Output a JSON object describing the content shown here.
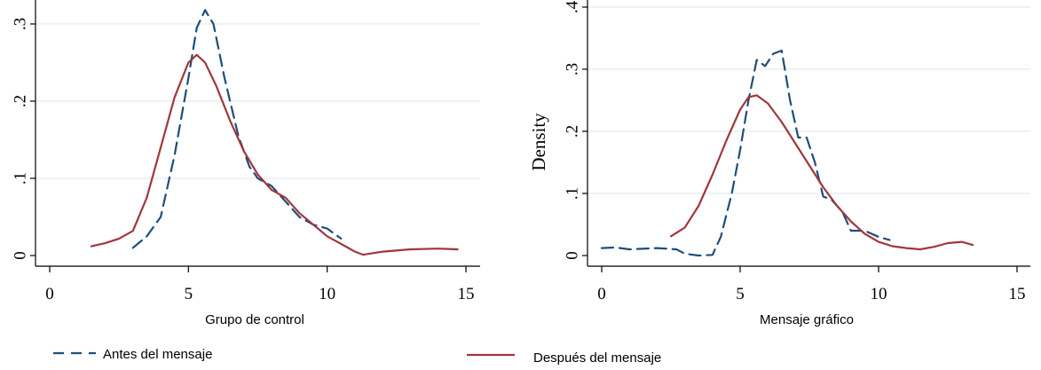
{
  "colors": {
    "antes": "#1f4e79",
    "despues": "#a0373c",
    "grid": "#e8eef0"
  },
  "legend": {
    "antes_label": "Antes del mensaje",
    "despues_label": "Después del mensaje",
    "position": "bottom"
  },
  "chart_data": [
    {
      "type": "line",
      "title": "",
      "xlabel": "Grupo de control",
      "ylabel": "",
      "xlim": [
        0,
        15
      ],
      "ylim": [
        0,
        0.32
      ],
      "xticks": [
        "0",
        "5",
        "10",
        "15"
      ],
      "yticks": [
        "0",
        ".1",
        ".2",
        ".3"
      ],
      "grid": true,
      "series": [
        {
          "name": "Antes del mensaje",
          "style": "dashed",
          "x": [
            3.0,
            3.5,
            4.0,
            4.5,
            5.0,
            5.3,
            5.6,
            5.9,
            6.3,
            6.8,
            7.2,
            7.5,
            8.0,
            8.5,
            9.0,
            9.5,
            10.0,
            10.5
          ],
          "y": [
            0.01,
            0.025,
            0.05,
            0.13,
            0.23,
            0.295,
            0.318,
            0.3,
            0.23,
            0.155,
            0.115,
            0.1,
            0.09,
            0.07,
            0.05,
            0.04,
            0.035,
            0.022
          ]
        },
        {
          "name": "Después del mensaje",
          "style": "solid",
          "x": [
            1.5,
            2.0,
            2.5,
            3.0,
            3.5,
            4.0,
            4.5,
            5.0,
            5.3,
            5.6,
            6.0,
            6.5,
            7.0,
            7.5,
            8.0,
            8.5,
            9.0,
            9.5,
            10.0,
            10.5,
            11.0,
            11.3,
            12.0,
            13.0,
            14.0,
            14.7
          ],
          "y": [
            0.012,
            0.016,
            0.022,
            0.032,
            0.075,
            0.14,
            0.205,
            0.25,
            0.26,
            0.25,
            0.22,
            0.175,
            0.135,
            0.105,
            0.085,
            0.075,
            0.055,
            0.04,
            0.025,
            0.015,
            0.005,
            0.001,
            0.005,
            0.008,
            0.009,
            0.008
          ]
        }
      ]
    },
    {
      "type": "line",
      "title": "",
      "xlabel": "Mensaje gráfico",
      "ylabel": "Density",
      "xlim": [
        0,
        15
      ],
      "ylim": [
        0,
        0.4
      ],
      "xticks": [
        "0",
        "5",
        "10",
        "15"
      ],
      "yticks": [
        "0",
        ".1",
        ".2",
        ".3",
        ".4"
      ],
      "grid": true,
      "series": [
        {
          "name": "Antes del mensaje",
          "style": "dashed",
          "x": [
            0.0,
            0.5,
            1.0,
            2.0,
            2.7,
            3.0,
            3.5,
            4.0,
            4.3,
            4.7,
            5.0,
            5.3,
            5.6,
            5.9,
            6.2,
            6.5,
            6.8,
            7.1,
            7.4,
            7.7,
            8.0,
            8.3,
            8.7,
            9.0,
            9.5,
            10.0,
            10.4
          ],
          "y": [
            0.012,
            0.013,
            0.01,
            0.012,
            0.01,
            0.003,
            0.0,
            0.001,
            0.03,
            0.1,
            0.17,
            0.25,
            0.315,
            0.305,
            0.325,
            0.33,
            0.25,
            0.19,
            0.19,
            0.15,
            0.095,
            0.09,
            0.07,
            0.04,
            0.04,
            0.03,
            0.025
          ]
        },
        {
          "name": "Después del mensaje",
          "style": "solid",
          "x": [
            2.5,
            3.0,
            3.5,
            4.0,
            4.5,
            5.0,
            5.3,
            5.6,
            6.0,
            6.5,
            7.0,
            7.5,
            8.0,
            8.5,
            9.0,
            9.5,
            10.0,
            10.5,
            11.0,
            11.5,
            12.0,
            12.5,
            13.0,
            13.4
          ],
          "y": [
            0.031,
            0.045,
            0.08,
            0.13,
            0.185,
            0.235,
            0.255,
            0.258,
            0.245,
            0.215,
            0.18,
            0.145,
            0.11,
            0.08,
            0.055,
            0.035,
            0.022,
            0.015,
            0.012,
            0.01,
            0.014,
            0.02,
            0.022,
            0.017
          ]
        }
      ]
    }
  ]
}
